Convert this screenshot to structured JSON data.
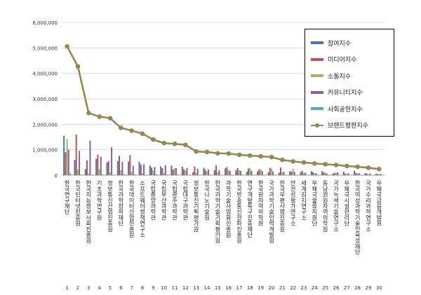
{
  "chart_data": {
    "type": "bar",
    "title": "",
    "xlabel": "",
    "ylabel": "",
    "ylim": [
      0,
      6000000
    ],
    "yticks": [
      "0",
      "1,000,000",
      "2,000,000",
      "3,000,000",
      "4,000,000",
      "5,000,000",
      "6,000,000"
    ],
    "grid": true,
    "legend_position": "top-right",
    "categories": [
      {
        "rank": "1",
        "name": "한국연구재단"
      },
      {
        "rank": "2",
        "name": "한국인터넷진흥원"
      },
      {
        "rank": "3",
        "name": "한국지능정보사회진흥원"
      },
      {
        "rank": "4",
        "name": "기초과학연구원"
      },
      {
        "rank": "5",
        "name": "정보통신산업진흥원"
      },
      {
        "rank": "6",
        "name": "한국과학창의재단"
      },
      {
        "rank": "7",
        "name": "한국데이터산업진흥원"
      },
      {
        "rank": "8",
        "name": "소프트웨어정책연구소"
      },
      {
        "rank": "9",
        "name": "국립중앙과학관"
      },
      {
        "rank": "10",
        "name": "국립부산과학관"
      },
      {
        "rank": "11",
        "name": "국립광주과학관"
      },
      {
        "rank": "12",
        "name": "국립대구과학관"
      },
      {
        "rank": "13",
        "name": "정보통신기획평가원"
      },
      {
        "rank": "14",
        "name": "한국나노기술원"
      },
      {
        "rank": "15",
        "name": "한국과학기술기획평가원"
      },
      {
        "rank": "16",
        "name": "과학기술사업화진흥원"
      },
      {
        "rank": "17",
        "name": "한국방송통신전파진흥원"
      },
      {
        "rank": "18",
        "name": "연구개발특구진흥재단"
      },
      {
        "rank": "19",
        "name": "한국원자력의학원"
      },
      {
        "rank": "20",
        "name": "국가과학기술인력개발원"
      },
      {
        "rank": "21",
        "name": "한국우편사업진흥원"
      },
      {
        "rank": "22",
        "name": "안전성평가연구소"
      },
      {
        "rank": "23",
        "name": "세계김치연구소"
      },
      {
        "rank": "24",
        "name": "우체국물류지원단"
      },
      {
        "rank": "25",
        "name": "동남권원자력의학원"
      },
      {
        "rank": "26",
        "name": "국가녹색기술연구소"
      },
      {
        "rank": "27",
        "name": "우체국시설관리단"
      },
      {
        "rank": "28",
        "name": "한국여성과학기술인육성재단"
      },
      {
        "rank": "29",
        "name": "국가수리과학연구소"
      },
      {
        "rank": "30",
        "name": "우체국금융개발원"
      }
    ],
    "series": [
      {
        "name": "참여지수",
        "kind": "bar",
        "color": "#4472C4",
        "values": [
          1550000,
          600000,
          240000,
          640000,
          500000,
          560000,
          540000,
          520000,
          380000,
          350000,
          380000,
          330000,
          120000,
          290000,
          200000,
          270000,
          200000,
          140000,
          150000,
          110000,
          100000,
          150000,
          120000,
          160000,
          160000,
          60000,
          140000,
          180000,
          80000,
          50000
        ]
      },
      {
        "name": "미디어지수",
        "kind": "bar",
        "color": "#C0504D",
        "values": [
          900000,
          1600000,
          580000,
          800000,
          560000,
          760000,
          790000,
          420000,
          300000,
          280000,
          220000,
          240000,
          340000,
          210000,
          380000,
          320000,
          280000,
          260000,
          230000,
          290000,
          300000,
          140000,
          180000,
          120000,
          110000,
          100000,
          60000,
          90000,
          70000,
          50000
        ]
      },
      {
        "name": "소통지수",
        "kind": "bar",
        "color": "#9BBB59",
        "values": [
          1420000,
          220000,
          70000,
          240000,
          120000,
          200000,
          130000,
          80000,
          180000,
          90000,
          280000,
          180000,
          100000,
          150000,
          110000,
          200000,
          190000,
          290000,
          230000,
          260000,
          110000,
          250000,
          90000,
          80000,
          110000,
          80000,
          40000,
          70000,
          30000,
          30000
        ]
      },
      {
        "name": "커뮤니티지수",
        "kind": "bar",
        "color": "#8064A2",
        "values": [
          1000000,
          960000,
          1360000,
          730000,
          1100000,
          520000,
          370000,
          430000,
          320000,
          390000,
          280000,
          290000,
          250000,
          230000,
          200000,
          180000,
          170000,
          170000,
          160000,
          150000,
          140000,
          130000,
          100000,
          80000,
          70000,
          110000,
          80000,
          80000,
          70000,
          60000
        ]
      },
      {
        "name": "사회공헌지수",
        "kind": "bar",
        "color": "#4BACC6",
        "values": [
          70000,
          20000,
          20000,
          30000,
          20000,
          40000,
          30000,
          20000,
          30000,
          20000,
          20000,
          10000,
          10000,
          20000,
          10000,
          20000,
          10000,
          10000,
          10000,
          20000,
          10000,
          10000,
          10000,
          20000,
          10000,
          10000,
          10000,
          10000,
          10000,
          10000
        ]
      },
      {
        "name": "브랜드평판지수",
        "kind": "line",
        "color": "#938953",
        "values": [
          5060000,
          4270000,
          2440000,
          2300000,
          2240000,
          1860000,
          1750000,
          1630000,
          1400000,
          1260000,
          1230000,
          1190000,
          930000,
          910000,
          860000,
          850000,
          800000,
          770000,
          740000,
          710000,
          600000,
          540000,
          500000,
          460000,
          430000,
          400000,
          360000,
          330000,
          290000,
          240000
        ]
      }
    ]
  }
}
